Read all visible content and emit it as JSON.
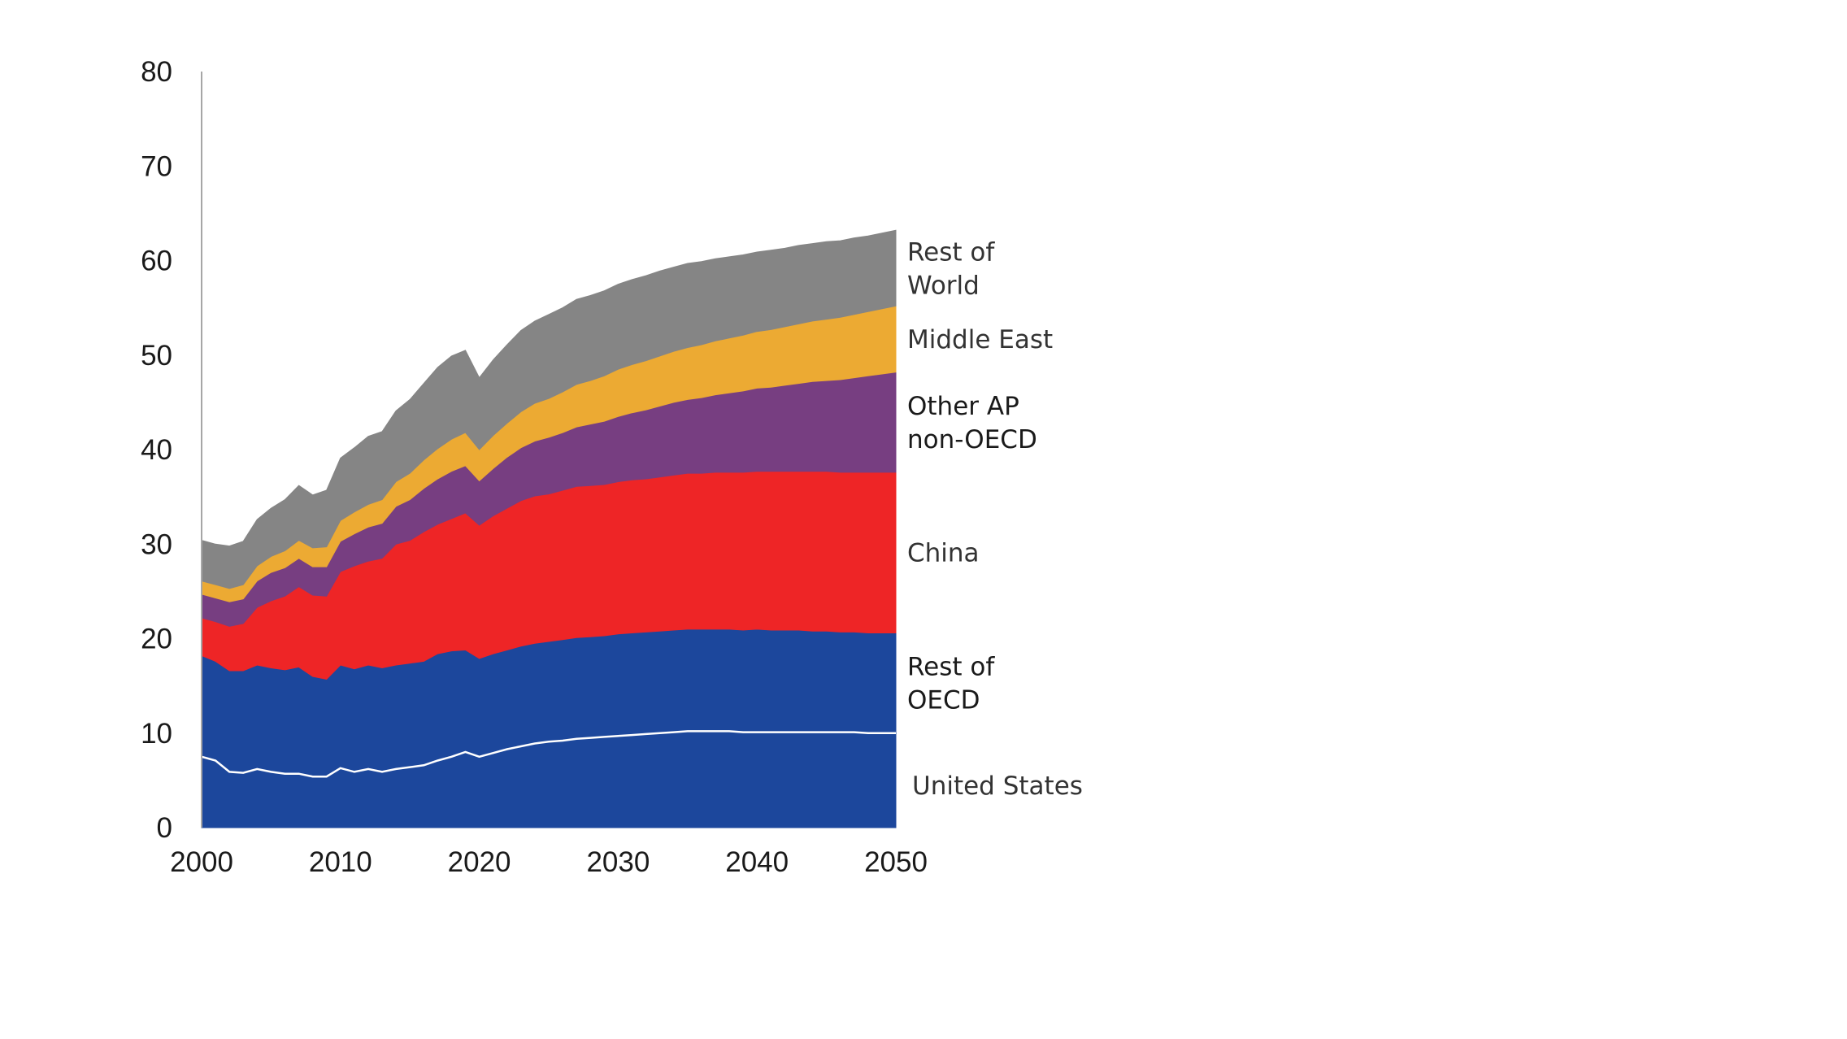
{
  "chart_data": {
    "type": "area",
    "stacked": true,
    "title": "",
    "xlabel": "",
    "ylabel": "",
    "xlim": [
      2000,
      2050
    ],
    "ylim": [
      0,
      80
    ],
    "x_ticks": [
      2000,
      2010,
      2020,
      2030,
      2040,
      2050
    ],
    "y_ticks": [
      0,
      10,
      20,
      30,
      40,
      50,
      60,
      70,
      80
    ],
    "grid": false,
    "legend_position": "right (direct labels)",
    "x": [
      2000,
      2001,
      2002,
      2003,
      2004,
      2005,
      2006,
      2007,
      2008,
      2009,
      2010,
      2011,
      2012,
      2013,
      2014,
      2015,
      2016,
      2017,
      2018,
      2019,
      2020,
      2021,
      2022,
      2023,
      2024,
      2025,
      2026,
      2027,
      2028,
      2029,
      2030,
      2031,
      2032,
      2033,
      2034,
      2035,
      2036,
      2037,
      2038,
      2039,
      2040,
      2041,
      2042,
      2043,
      2044,
      2045,
      2046,
      2047,
      2048,
      2049,
      2050
    ],
    "series": [
      {
        "name": "United States",
        "label_lines": [
          "United States"
        ],
        "color": "#1c479c",
        "label_color": "#333333",
        "values": [
          7.5,
          7.1,
          5.9,
          5.8,
          6.2,
          5.9,
          5.7,
          5.7,
          5.4,
          5.4,
          6.3,
          5.9,
          6.2,
          5.9,
          6.2,
          6.4,
          6.6,
          7.1,
          7.5,
          8.0,
          7.5,
          7.9,
          8.3,
          8.6,
          8.9,
          9.1,
          9.2,
          9.4,
          9.5,
          9.6,
          9.7,
          9.8,
          9.9,
          10.0,
          10.1,
          10.2,
          10.2,
          10.2,
          10.2,
          10.1,
          10.1,
          10.1,
          10.1,
          10.1,
          10.1,
          10.1,
          10.1,
          10.1,
          10.0,
          10.0,
          10.0
        ]
      },
      {
        "name": "Rest of OECD",
        "label_lines": [
          "Rest of",
          "OECD"
        ],
        "color": "#1c479c",
        "label_color": "#1a1a1a",
        "values": [
          10.7,
          10.5,
          10.7,
          10.8,
          11.0,
          11.0,
          11.0,
          11.3,
          10.6,
          10.3,
          10.9,
          10.9,
          11.0,
          11.0,
          11.0,
          11.0,
          11.0,
          11.3,
          11.2,
          10.8,
          10.4,
          10.5,
          10.5,
          10.6,
          10.6,
          10.6,
          10.7,
          10.7,
          10.7,
          10.7,
          10.8,
          10.8,
          10.8,
          10.8,
          10.8,
          10.8,
          10.8,
          10.8,
          10.8,
          10.8,
          10.9,
          10.8,
          10.8,
          10.8,
          10.7,
          10.7,
          10.6,
          10.6,
          10.6,
          10.6,
          10.6
        ]
      },
      {
        "name": "China",
        "label_lines": [
          "China"
        ],
        "color": "#ee2526",
        "label_color": "#333333",
        "values": [
          4.0,
          4.2,
          4.7,
          5.0,
          6.1,
          7.1,
          7.8,
          8.5,
          8.6,
          8.8,
          9.9,
          10.9,
          11.0,
          11.6,
          12.8,
          13.0,
          13.7,
          13.7,
          14.0,
          14.5,
          14.1,
          14.6,
          15.0,
          15.4,
          15.6,
          15.6,
          15.8,
          16.0,
          16.0,
          16.0,
          16.1,
          16.2,
          16.2,
          16.3,
          16.4,
          16.5,
          16.5,
          16.6,
          16.6,
          16.7,
          16.7,
          16.8,
          16.8,
          16.8,
          16.9,
          16.9,
          16.9,
          16.9,
          17.0,
          17.0,
          17.0
        ]
      },
      {
        "name": "Other AP non-OECD",
        "label_lines": [
          "Other AP",
          "non-OECD"
        ],
        "color": "#773e81",
        "label_color": "#1a1a1a",
        "values": [
          2.5,
          2.5,
          2.6,
          2.6,
          2.8,
          3.0,
          3.0,
          3.0,
          3.0,
          3.1,
          3.2,
          3.4,
          3.6,
          3.7,
          4.0,
          4.3,
          4.6,
          4.8,
          5.0,
          5.0,
          4.7,
          5.0,
          5.4,
          5.6,
          5.8,
          6.0,
          6.1,
          6.3,
          6.5,
          6.7,
          6.9,
          7.1,
          7.3,
          7.5,
          7.7,
          7.8,
          8.0,
          8.2,
          8.4,
          8.6,
          8.8,
          8.9,
          9.1,
          9.3,
          9.5,
          9.6,
          9.8,
          10.0,
          10.2,
          10.4,
          10.6
        ]
      },
      {
        "name": "Middle East",
        "label_lines": [
          "Middle East"
        ],
        "color": "#ecaa33",
        "label_color": "#333333",
        "values": [
          1.4,
          1.4,
          1.4,
          1.5,
          1.6,
          1.7,
          1.8,
          1.9,
          2.0,
          2.1,
          2.2,
          2.3,
          2.4,
          2.5,
          2.6,
          2.8,
          3.0,
          3.2,
          3.4,
          3.5,
          3.3,
          3.5,
          3.6,
          3.8,
          4.0,
          4.1,
          4.3,
          4.5,
          4.6,
          4.8,
          5.0,
          5.1,
          5.2,
          5.3,
          5.4,
          5.5,
          5.6,
          5.7,
          5.8,
          5.9,
          6.0,
          6.1,
          6.2,
          6.3,
          6.4,
          6.5,
          6.6,
          6.7,
          6.8,
          6.9,
          7.0
        ]
      },
      {
        "name": "Rest of World",
        "label_lines": [
          "Rest of",
          "World"
        ],
        "color": "#858585",
        "label_color": "#333333",
        "values": [
          4.3,
          4.3,
          4.5,
          4.6,
          4.9,
          5.1,
          5.4,
          5.8,
          5.6,
          6.0,
          6.6,
          6.8,
          7.2,
          7.2,
          7.5,
          7.8,
          8.1,
          8.6,
          8.8,
          8.7,
          7.6,
          8.0,
          8.3,
          8.6,
          8.7,
          8.9,
          8.9,
          9.0,
          9.0,
          9.0,
          9.0,
          9.0,
          9.0,
          9.0,
          8.9,
          8.9,
          8.8,
          8.7,
          8.6,
          8.5,
          8.4,
          8.4,
          8.3,
          8.3,
          8.2,
          8.2,
          8.1,
          8.1,
          8.0,
          8.0,
          8.0
        ]
      }
    ]
  }
}
